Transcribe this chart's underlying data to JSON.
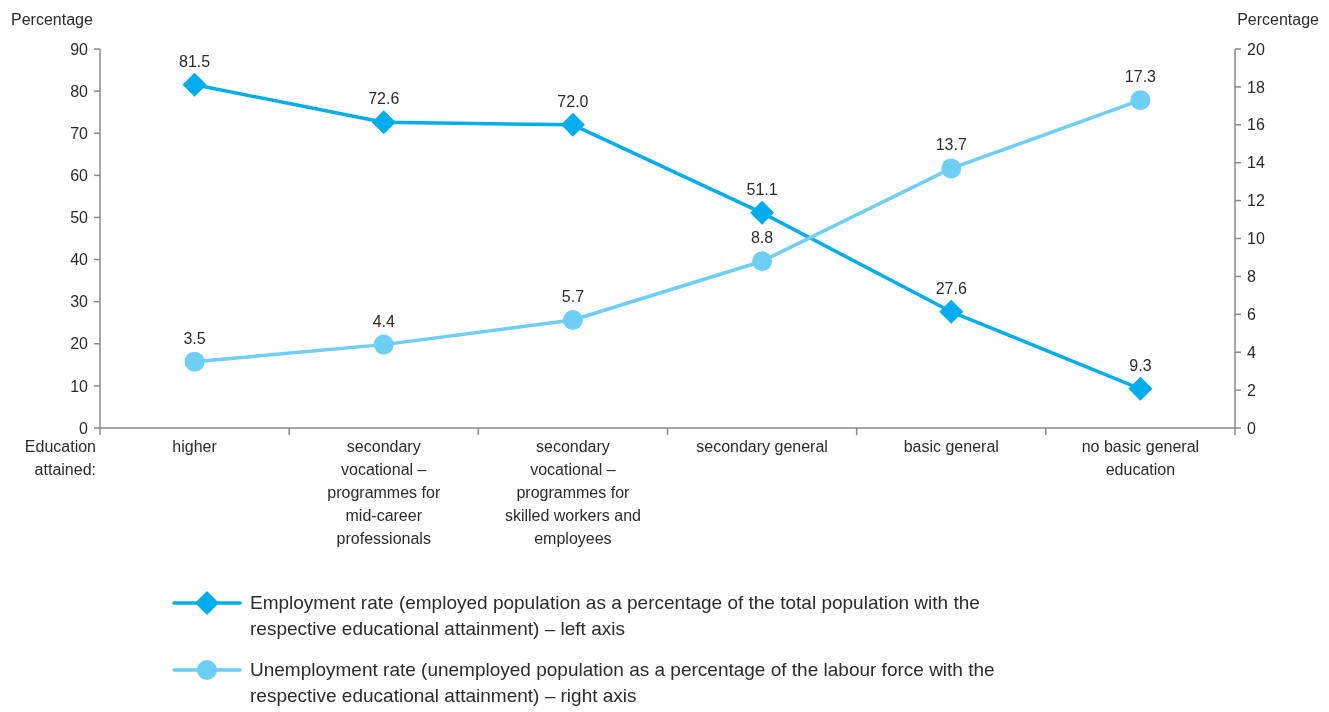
{
  "chart_data": {
    "type": "line",
    "xlabel": "Education attained:",
    "ylabel": "Percentage",
    "y2label": "Percentage",
    "categories": [
      "higher",
      "secondary vocational – programmes for mid-career professionals",
      "secondary vocational – programmes for skilled workers and employees",
      "secondary general",
      "basic general",
      "no basic general education"
    ],
    "series": [
      {
        "name": "Employment rate (employed population as a percentage of the total population with the respective educational attainment) – left axis",
        "color": "#00aeef",
        "marker": "diamond",
        "values": [
          81.5,
          72.6,
          72.0,
          51.1,
          27.6,
          9.3
        ],
        "value_labels": [
          "81.5",
          "72.6",
          "72.0",
          "51.1",
          "27.6",
          "9.3"
        ]
      },
      {
        "name": "Unemployment rate (unemployed population as a percentage of the labour force with the respective educational attainment) – right axis",
        "color": "#6dcff6",
        "marker": "circle",
        "axis": "y2",
        "values": [
          3.5,
          4.4,
          5.7,
          8.8,
          13.7,
          17.3
        ],
        "value_labels": [
          "3.5",
          "4.4",
          "5.7",
          "8.8",
          "13.7",
          "17.3"
        ]
      }
    ],
    "ylim": [
      0,
      90
    ],
    "yticks": [
      0,
      10,
      20,
      30,
      40,
      50,
      60,
      70,
      80,
      90
    ],
    "y2lim": [
      0,
      20
    ],
    "y2ticks": [
      0,
      2,
      4,
      6,
      8,
      10,
      12,
      14,
      16,
      18,
      20
    ],
    "legend": "bottom"
  }
}
